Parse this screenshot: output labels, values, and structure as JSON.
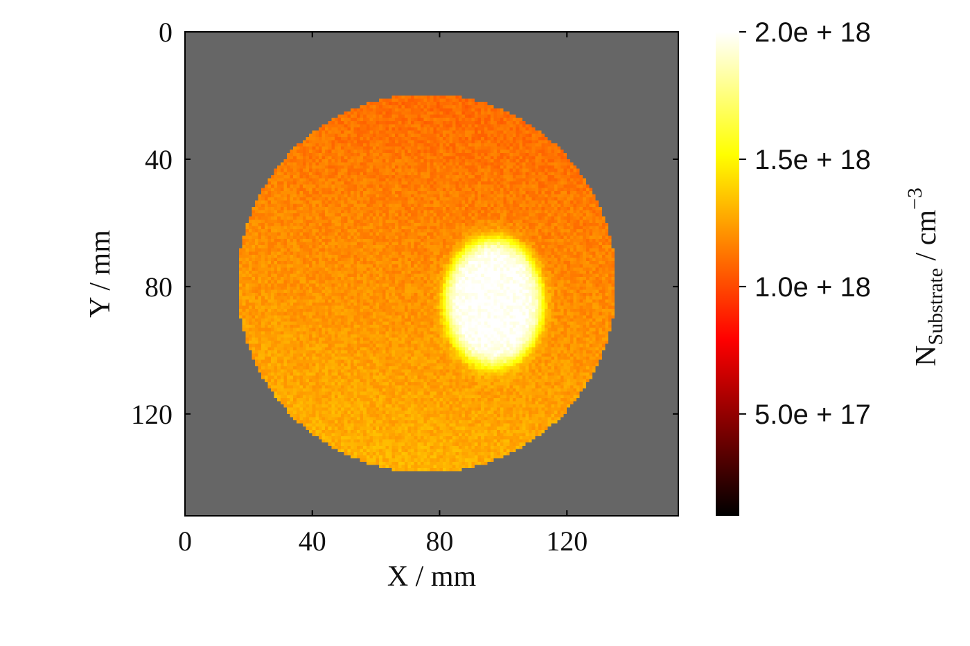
{
  "chart_data": {
    "type": "heatmap",
    "title": "",
    "xlabel": "X / mm",
    "ylabel": "Y / mm",
    "xlim": [
      0,
      155
    ],
    "ylim": [
      0,
      152
    ],
    "y_inverted": true,
    "x_ticks": [
      0,
      40,
      80,
      120
    ],
    "y_ticks": [
      0,
      40,
      80,
      120
    ],
    "background_color": "#666666",
    "wafer": {
      "shape": "circle",
      "center_x": 76,
      "center_y": 79,
      "radius": 59.5,
      "base_value": 1.2e+18,
      "gradient": "lower values (~1.1e18) toward top-left, higher (~1.35e18) toward bottom"
    },
    "hotspot": {
      "shape": "ellipse",
      "center_x": 97,
      "center_y": 85,
      "radius_x": 16,
      "radius_y": 21,
      "peak_value": 2e+18
    },
    "colorbar": {
      "colormap": "hot",
      "min": 1e+17,
      "max": 2e+18,
      "ticks": [
        2e+18,
        1.5e+18,
        1e+18,
        5e+17
      ],
      "tick_labels": [
        "2.0e + 18",
        "1.5e + 18",
        "1.0e + 18",
        "5.0e + 17"
      ],
      "label_main": "N",
      "label_sub": "Substrate",
      "label_unit": " / cm",
      "label_sup": "−3"
    }
  }
}
